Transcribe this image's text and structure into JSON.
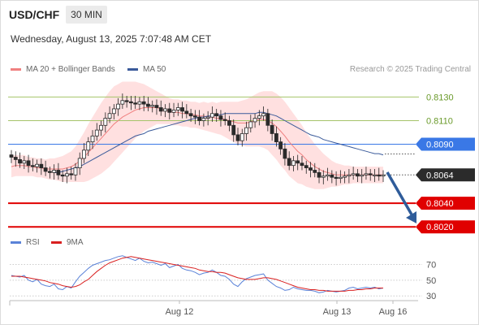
{
  "header": {
    "symbol": "USD/CHF",
    "timeframe": "30 MIN",
    "datetime": "Wednesday, August 13, 2025 7:07:48 AM CET"
  },
  "legend": {
    "ma20_label": "MA 20 + Bollinger Bands",
    "ma50_label": "MA 50",
    "rsi_label": "RSI",
    "ma9_label": "9MA",
    "credit": "Research © 2025 Trading Central"
  },
  "colors": {
    "ma20": "#f08080",
    "ma50": "#3a5a9a",
    "bands": "#ffd6d6",
    "resistance": "#3a78e6",
    "support": "#e00000",
    "target": "#a5c46a",
    "price_box": "#2b2b2b",
    "arrow": "#2f5c9a",
    "rsi": "#5a82d8",
    "rsi_ma": "#d92020"
  },
  "chart_data": [
    {
      "type": "candlestick",
      "title": "USD/CHF",
      "ylim": [
        0.8016,
        0.8142
      ],
      "x_ticks": [
        "Aug 12",
        "Aug 13",
        "Aug 16"
      ],
      "levels": [
        {
          "value": 0.813,
          "label": "0.8130",
          "kind": "target"
        },
        {
          "value": 0.811,
          "label": "0.8110",
          "kind": "target"
        },
        {
          "value": 0.809,
          "label": "0.8090",
          "kind": "resistance"
        },
        {
          "value": 0.8064,
          "label": "0.8064",
          "kind": "price"
        },
        {
          "value": 0.804,
          "label": "0.8040",
          "kind": "support"
        },
        {
          "value": 0.802,
          "label": "0.8020",
          "kind": "support"
        }
      ],
      "close": [
        0.8079,
        0.8077,
        0.8074,
        0.8076,
        0.8072,
        0.8071,
        0.8073,
        0.807,
        0.8067,
        0.8066,
        0.8068,
        0.8064,
        0.8063,
        0.8065,
        0.8064,
        0.807,
        0.8078,
        0.8085,
        0.8092,
        0.8097,
        0.8102,
        0.8106,
        0.8112,
        0.8116,
        0.812,
        0.8124,
        0.8127,
        0.8126,
        0.8125,
        0.8124,
        0.8126,
        0.8124,
        0.8122,
        0.8123,
        0.8121,
        0.8118,
        0.812,
        0.8117,
        0.8119,
        0.8121,
        0.8118,
        0.8116,
        0.8114,
        0.8113,
        0.811,
        0.8112,
        0.8113,
        0.8116,
        0.8114,
        0.8111,
        0.811,
        0.8106,
        0.8098,
        0.8093,
        0.8099,
        0.8104,
        0.8109,
        0.8112,
        0.8114,
        0.8116,
        0.8106,
        0.8099,
        0.8092,
        0.8086,
        0.8078,
        0.8072,
        0.8076,
        0.8074,
        0.8072,
        0.807,
        0.8068,
        0.8066,
        0.8062,
        0.8063,
        0.8064,
        0.8062,
        0.8061,
        0.8062,
        0.8063,
        0.8064,
        0.8065,
        0.8063,
        0.8064,
        0.8065,
        0.8064,
        0.8064,
        0.8063,
        0.8064
      ],
      "ma20": [
        0.8071,
        0.8072,
        0.8072,
        0.8072,
        0.8071,
        0.8071,
        0.807,
        0.807,
        0.8069,
        0.8069,
        0.8069,
        0.8069,
        0.8069,
        0.807,
        0.8071,
        0.8073,
        0.8076,
        0.8079,
        0.8083,
        0.8087,
        0.8091,
        0.8095,
        0.8099,
        0.8103,
        0.8107,
        0.811,
        0.8113,
        0.8115,
        0.8117,
        0.8119,
        0.812,
        0.8121,
        0.8121,
        0.8121,
        0.8121,
        0.812,
        0.8119,
        0.8118,
        0.8117,
        0.8117,
        0.8116,
        0.8116,
        0.8115,
        0.8115,
        0.8114,
        0.8114,
        0.8113,
        0.8113,
        0.8112,
        0.8112,
        0.8111,
        0.811,
        0.8109,
        0.8108,
        0.8108,
        0.8108,
        0.8109,
        0.811,
        0.8111,
        0.8111,
        0.811,
        0.8108,
        0.8105,
        0.8101,
        0.8097,
        0.8092,
        0.8088,
        0.8084,
        0.8081,
        0.8077,
        0.8074,
        0.8071,
        0.8069,
        0.8067,
        0.8066,
        0.8065,
        0.8064,
        0.8064,
        0.8064,
        0.8064,
        0.8064,
        0.8064,
        0.8064,
        0.8064,
        0.8064,
        0.8064,
        0.8064,
        0.8064
      ],
      "band_width": [
        0.0009,
        0.0009,
        0.0009,
        0.0009,
        0.0008,
        0.0008,
        0.0008,
        0.0008,
        0.0008,
        0.0009,
        0.0009,
        0.001,
        0.0011,
        0.0012,
        0.0013,
        0.0015,
        0.0018,
        0.0021,
        0.0024,
        0.0026,
        0.0028,
        0.003,
        0.0031,
        0.0032,
        0.0032,
        0.0031,
        0.003,
        0.0028,
        0.0026,
        0.0024,
        0.0022,
        0.002,
        0.0018,
        0.0016,
        0.0014,
        0.0013,
        0.0012,
        0.0011,
        0.0011,
        0.0011,
        0.0011,
        0.0011,
        0.0011,
        0.0011,
        0.0011,
        0.0012,
        0.0012,
        0.0013,
        0.0013,
        0.0014,
        0.0015,
        0.0016,
        0.0017,
        0.0018,
        0.0019,
        0.002,
        0.0021,
        0.0022,
        0.0023,
        0.0024,
        0.0025,
        0.0027,
        0.0028,
        0.0029,
        0.0029,
        0.0029,
        0.0028,
        0.0027,
        0.0025,
        0.0023,
        0.0021,
        0.0019,
        0.0017,
        0.0015,
        0.0013,
        0.0011,
        0.001,
        0.0009,
        0.0008,
        0.0008,
        0.0007,
        0.0007,
        0.0007,
        0.0007,
        0.0007,
        0.0007,
        0.0007,
        0.0007
      ],
      "ma50": [
        null,
        null,
        null,
        null,
        null,
        null,
        null,
        null,
        null,
        null,
        0.8066,
        0.8066,
        0.8067,
        0.8068,
        0.8069,
        0.807,
        0.8071,
        0.8073,
        0.8075,
        0.8077,
        0.8079,
        0.8081,
        0.8083,
        0.8085,
        0.8087,
        0.8089,
        0.8091,
        0.8093,
        0.8095,
        0.8097,
        0.8098,
        0.8099,
        0.8101,
        0.8102,
        0.8103,
        0.8104,
        0.8105,
        0.8106,
        0.8107,
        0.8108,
        0.8109,
        0.811,
        0.8111,
        0.8112,
        0.8113,
        0.8113,
        0.8114,
        0.8114,
        0.8115,
        0.8115,
        0.8116,
        0.8116,
        0.8116,
        0.8116,
        0.8116,
        0.8116,
        0.8116,
        0.8116,
        0.8117,
        0.8117,
        0.8116,
        0.8115,
        0.8114,
        0.8112,
        0.811,
        0.8108,
        0.8106,
        0.8104,
        0.8102,
        0.81,
        0.8098,
        0.8097,
        0.8096,
        0.8094,
        0.8093,
        0.8092,
        0.8091,
        0.809,
        0.8089,
        0.8088,
        0.8087,
        0.8086,
        0.8085,
        0.8084,
        0.8083,
        0.8082,
        0.8082,
        0.8081
      ]
    },
    {
      "type": "line",
      "title": "RSI",
      "ylim": [
        24,
        86
      ],
      "y_ticks": [
        70,
        50,
        30
      ],
      "series": [
        {
          "name": "RSI",
          "values": [
            56,
            55,
            54,
            56,
            50,
            48,
            51,
            45,
            43,
            42,
            45,
            39,
            38,
            42,
            40,
            48,
            55,
            60,
            65,
            69,
            71,
            73,
            75,
            76,
            78,
            80,
            81,
            79,
            77,
            75,
            78,
            74,
            72,
            73,
            71,
            69,
            71,
            66,
            68,
            70,
            65,
            63,
            62,
            60,
            57,
            59,
            60,
            63,
            60,
            56,
            55,
            51,
            45,
            42,
            48,
            52,
            54,
            56,
            57,
            58,
            50,
            46,
            42,
            40,
            37,
            38,
            41,
            39,
            38,
            37,
            37,
            36,
            34,
            35,
            37,
            36,
            35,
            36,
            37,
            40,
            41,
            39,
            40,
            41,
            40,
            41,
            39,
            40
          ]
        },
        {
          "name": "9MA",
          "values": [
            55,
            55,
            55,
            54,
            53,
            52,
            51,
            50,
            49,
            47,
            46,
            45,
            43,
            42,
            41,
            42,
            44,
            48,
            51,
            56,
            61,
            65,
            69,
            72,
            74,
            76,
            78,
            79,
            80,
            79,
            78,
            77,
            76,
            75,
            74,
            73,
            72,
            71,
            70,
            69,
            68,
            67,
            66,
            65,
            63,
            62,
            61,
            61,
            60,
            60,
            59,
            57,
            55,
            53,
            52,
            51,
            51,
            51,
            52,
            53,
            53,
            52,
            51,
            49,
            47,
            45,
            43,
            41,
            40,
            39,
            38,
            38,
            37,
            37,
            36,
            36,
            36,
            36,
            36,
            37,
            37,
            38,
            38,
            39,
            39,
            40,
            40,
            40
          ]
        }
      ]
    }
  ]
}
